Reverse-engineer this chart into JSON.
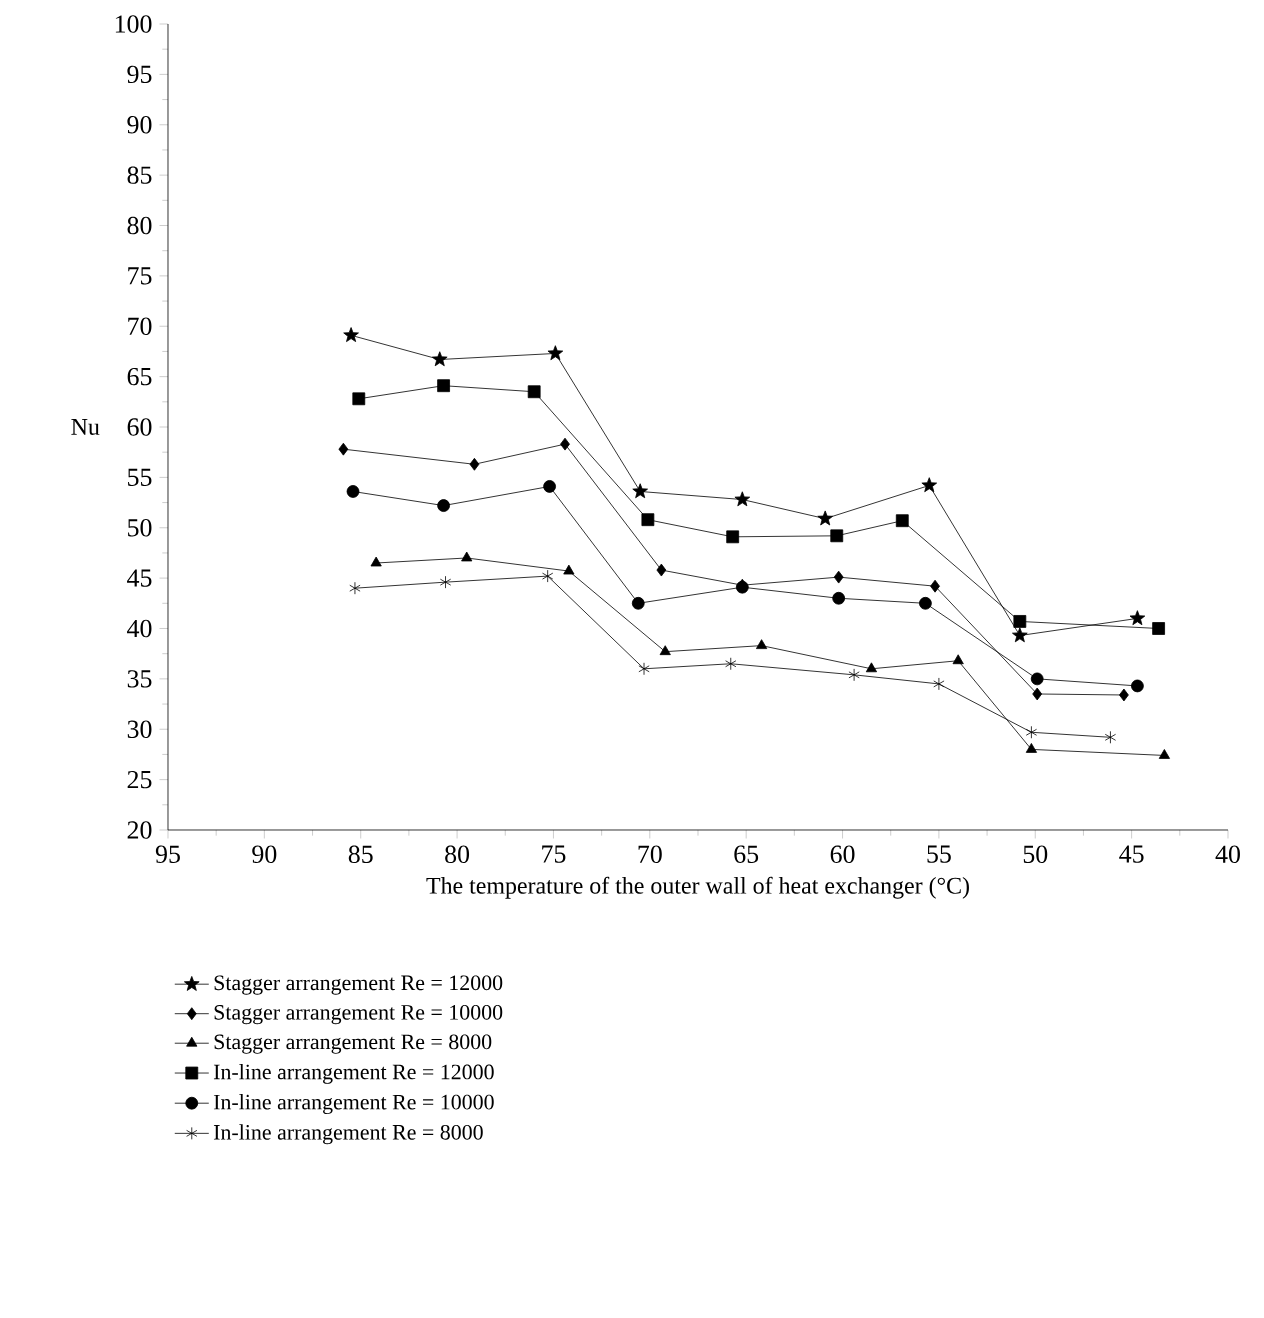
{
  "chart_data": {
    "type": "line",
    "xlabel": "The temperature of the outer wall of heat exchanger (°C)",
    "ylabel": "Nu",
    "xlim": [
      95,
      40
    ],
    "xticks": [
      95,
      90,
      85,
      80,
      75,
      70,
      65,
      60,
      55,
      50,
      45,
      40
    ],
    "ylim": [
      20,
      100
    ],
    "yticks": [
      20,
      25,
      30,
      35,
      40,
      45,
      50,
      55,
      60,
      65,
      70,
      75,
      80,
      85,
      90,
      95,
      100
    ],
    "grid": false,
    "legend": "bottom",
    "line_style": "solid",
    "series": [
      {
        "name": "Stagger arrangement Re = 12000",
        "color": "#000000",
        "marker": "star",
        "x": [
          85.5,
          80.9,
          74.9,
          70.5,
          65.2,
          60.9,
          55.5,
          50.8,
          44.7
        ],
        "values": [
          69.1,
          66.7,
          67.3,
          53.6,
          52.8,
          50.9,
          54.2,
          39.3,
          41.0
        ]
      },
      {
        "name": "Stagger arrangement Re = 10000",
        "color": "#000000",
        "marker": "diamond",
        "x": [
          85.9,
          79.1,
          74.4,
          69.4,
          65.2,
          60.2,
          55.2,
          49.9,
          45.4
        ],
        "values": [
          57.8,
          56.3,
          58.3,
          45.8,
          44.3,
          45.1,
          44.2,
          33.5,
          33.4
        ]
      },
      {
        "name": "Stagger arrangement Re = 8000",
        "color": "#000000",
        "marker": "triangle down",
        "x": [
          84.2,
          79.5,
          74.2,
          69.2,
          64.2,
          58.5,
          54.0,
          50.2,
          43.3
        ],
        "values": [
          46.5,
          47.0,
          45.7,
          37.7,
          38.3,
          36.0,
          36.8,
          28.0,
          27.4
        ]
      },
      {
        "name": "In-line arrangement Re = 12000",
        "color": "#000000",
        "marker": "square",
        "x": [
          85.1,
          80.7,
          76.0,
          70.1,
          65.7,
          60.3,
          56.9,
          50.8,
          43.6
        ],
        "values": [
          62.8,
          64.1,
          63.5,
          50.8,
          49.1,
          49.2,
          50.7,
          40.7,
          40.0
        ]
      },
      {
        "name": "In-line arrangement Re = 10000",
        "color": "#000000",
        "marker": "circle",
        "x": [
          85.4,
          80.7,
          75.2,
          70.6,
          65.2,
          60.2,
          55.7,
          49.9,
          44.7
        ],
        "values": [
          53.6,
          52.2,
          54.1,
          42.5,
          44.1,
          43.0,
          42.5,
          35.0,
          34.3
        ]
      },
      {
        "name": "In-line arrangement Re = 8000",
        "color": "#000000",
        "marker": "cross",
        "x": [
          85.3,
          80.6,
          75.3,
          70.3,
          65.8,
          59.4,
          55.0,
          50.2,
          46.1
        ],
        "values": [
          44.0,
          44.6,
          45.2,
          36.0,
          36.5,
          35.4,
          34.5,
          29.7,
          29.2
        ]
      }
    ]
  }
}
